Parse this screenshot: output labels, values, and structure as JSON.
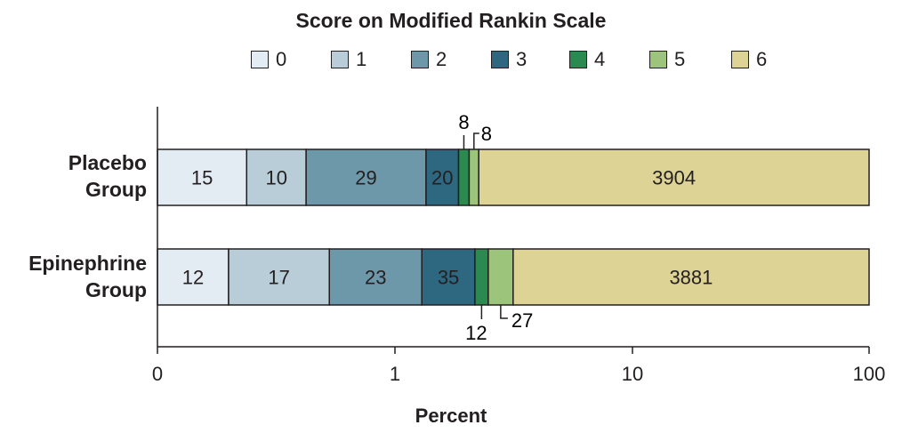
{
  "chart_data": {
    "type": "bar",
    "orientation": "horizontal-stacked",
    "legend_title": "Score on Modified Rankin Scale",
    "legend": [
      {
        "label": "0",
        "color": "#e3ebf3"
      },
      {
        "label": "1",
        "color": "#b9cdd8"
      },
      {
        "label": "2",
        "color": "#6d98aa"
      },
      {
        "label": "3",
        "color": "#2e6880"
      },
      {
        "label": "4",
        "color": "#2a8a4f"
      },
      {
        "label": "5",
        "color": "#9cc47a"
      },
      {
        "label": "6",
        "color": "#dcd394"
      }
    ],
    "categories": [
      "Placebo Group",
      "Epinephrine Group"
    ],
    "category_lines": [
      [
        "Placebo",
        "Group"
      ],
      [
        "Epinephrine",
        "Group"
      ]
    ],
    "series": [
      {
        "group": "Placebo Group",
        "counts": [
          15,
          10,
          29,
          20,
          8,
          8,
          3904
        ]
      },
      {
        "group": "Epinephrine Group",
        "counts": [
          12,
          17,
          23,
          35,
          12,
          27,
          3881
        ]
      }
    ],
    "x_axis": {
      "label": "Percent",
      "scale": "log",
      "ticks": [
        0,
        1,
        10,
        100
      ],
      "tick_labels": [
        "0",
        "1",
        "10",
        "100"
      ],
      "range": [
        0,
        100
      ]
    }
  }
}
